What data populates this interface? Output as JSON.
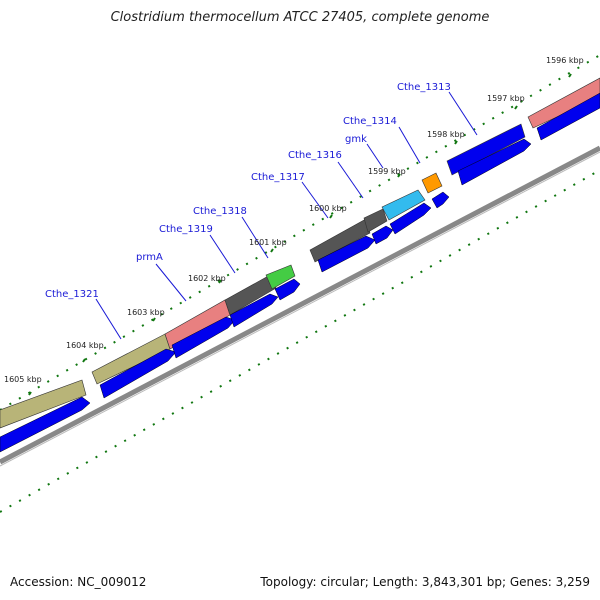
{
  "title": "Clostridium thermocellum ATCC 27405, complete genome",
  "footer": {
    "accession": "Accession: NC_009012",
    "summary": "Topology: circular; Length: 3,843,301 bp; Genes: 3,259"
  },
  "kbp_labels": [
    "1596 kbp",
    "1597 kbp",
    "1598 kbp",
    "1599 kbp",
    "1600 kbp",
    "1601 kbp",
    "1602 kbp",
    "1603 kbp",
    "1604 kbp",
    "1605 kbp"
  ],
  "gene_labels": [
    "Cthe_1313",
    "Cthe_1314",
    "gmk",
    "Cthe_1316",
    "Cthe_1317",
    "Cthe_1318",
    "Cthe_1319",
    "prmA",
    "Cthe_1321"
  ],
  "genes": [
    {
      "name": "Cthe_1313",
      "color": "#e88080"
    },
    {
      "name": "Cthe_1314",
      "color": "#ff9900"
    },
    {
      "name": "gmk",
      "color": "#33bbee"
    },
    {
      "name": "Cthe_1316",
      "color": "#555555"
    },
    {
      "name": "Cthe_1317",
      "color": "#555555"
    },
    {
      "name": "Cthe_1318",
      "color": "#44cc44"
    },
    {
      "name": "Cthe_1319",
      "color": "#555555"
    },
    {
      "name": "prmA",
      "color": "#e88080"
    },
    {
      "name": "Cthe_1321",
      "color": "#b8b478"
    }
  ],
  "colors": {
    "cds": "#0000ee",
    "tick": "#117711",
    "backbone": "#888888"
  }
}
